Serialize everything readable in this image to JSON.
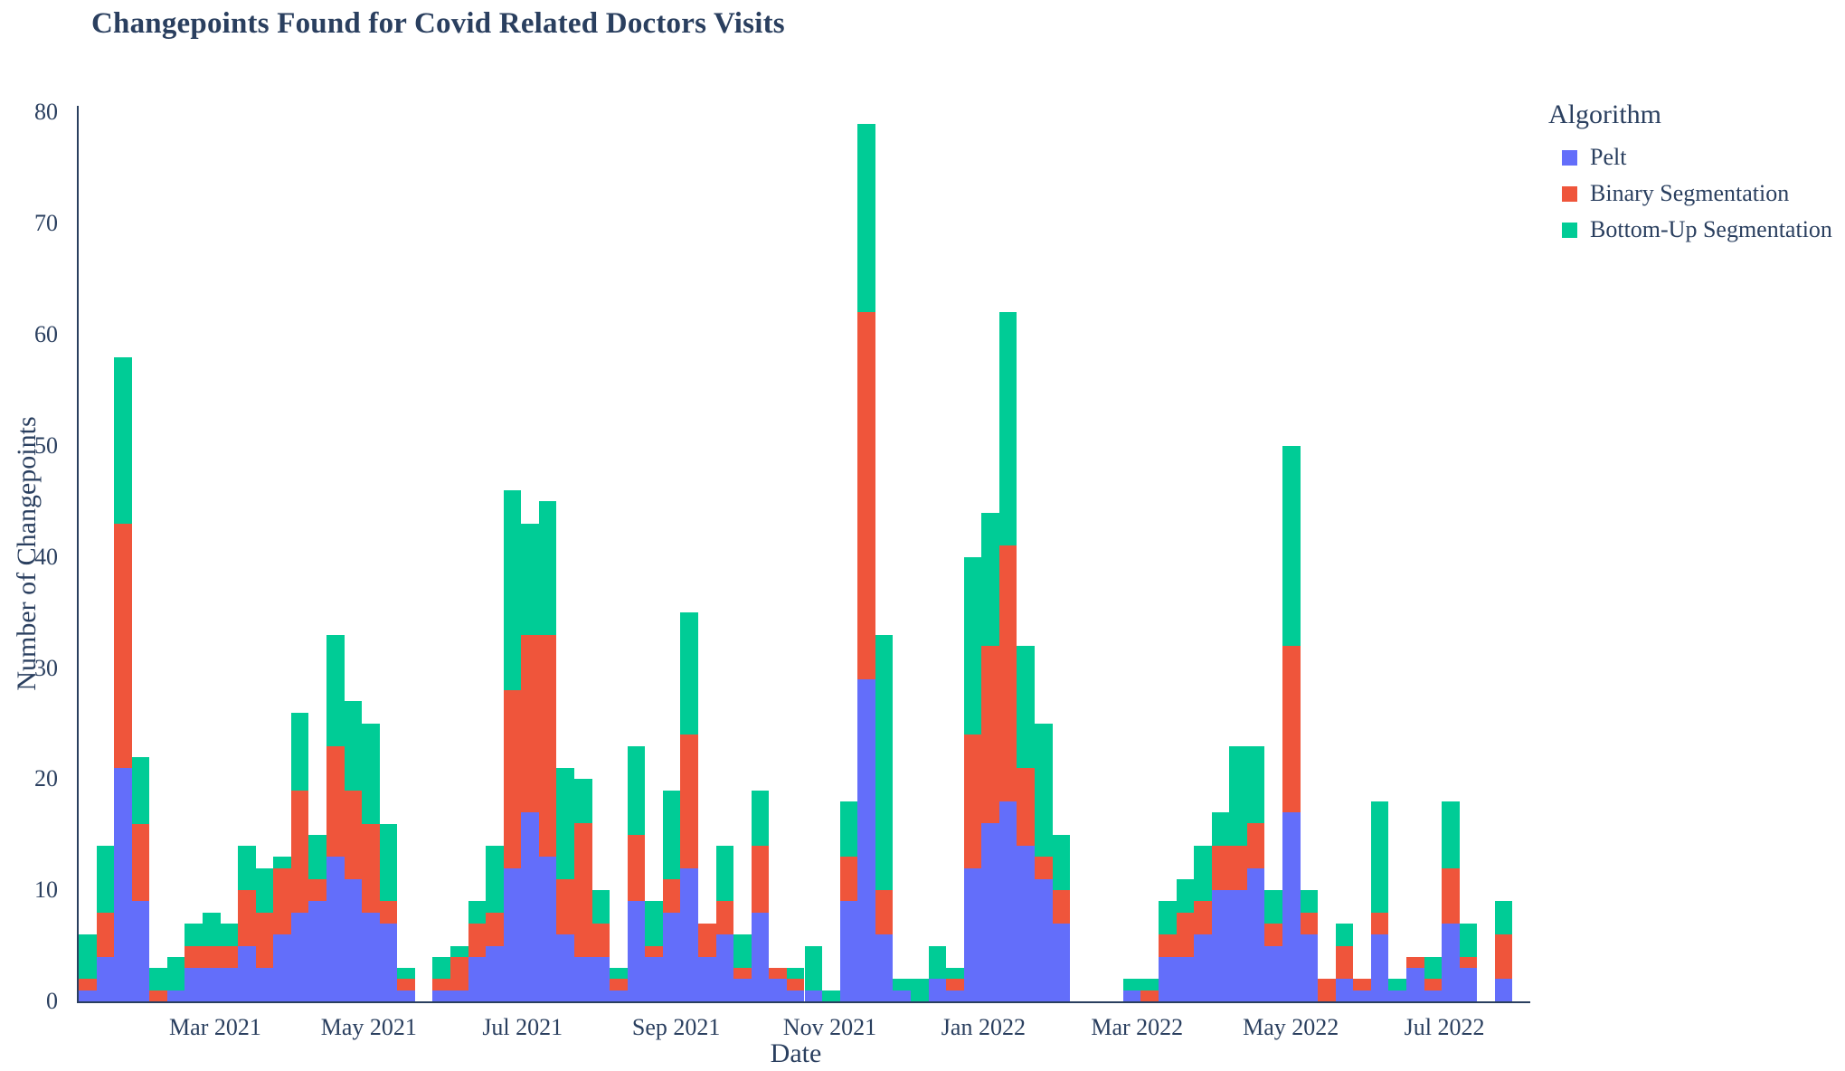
{
  "page": {
    "background": "#ffffff",
    "text_color": "#2a3f5f"
  },
  "chart_data": {
    "type": "bar",
    "stacked": true,
    "title": "Changepoints Found for Covid Related Doctors Visits",
    "xlabel": "Date",
    "ylabel": "Number of Changepoints",
    "ylim": [
      0,
      80.6
    ],
    "yticks": [
      0,
      10,
      20,
      30,
      40,
      50,
      60,
      70,
      80
    ],
    "xtick_labels": [
      "Mar 2021",
      "May 2021",
      "Jul 2021",
      "Sep 2021",
      "Nov 2021",
      "Jan 2022",
      "Mar 2022",
      "May 2022",
      "Jul 2022"
    ],
    "grid": false,
    "legend": {
      "title": "Algorithm",
      "position": "top-right"
    },
    "x_weeks": [
      "2021-01-03",
      "2021-01-10",
      "2021-01-17",
      "2021-01-24",
      "2021-01-31",
      "2021-02-07",
      "2021-02-14",
      "2021-02-21",
      "2021-02-28",
      "2021-03-07",
      "2021-03-14",
      "2021-03-21",
      "2021-03-28",
      "2021-04-04",
      "2021-04-11",
      "2021-04-18",
      "2021-04-25",
      "2021-05-02",
      "2021-05-09",
      "2021-05-16",
      "2021-05-23",
      "2021-05-30",
      "2021-06-06",
      "2021-06-13",
      "2021-06-20",
      "2021-06-27",
      "2021-07-04",
      "2021-07-11",
      "2021-07-18",
      "2021-07-25",
      "2021-08-01",
      "2021-08-08",
      "2021-08-15",
      "2021-08-22",
      "2021-08-29",
      "2021-09-05",
      "2021-09-12",
      "2021-09-19",
      "2021-09-26",
      "2021-10-03",
      "2021-10-10",
      "2021-10-17",
      "2021-10-24",
      "2021-10-31",
      "2021-11-07",
      "2021-11-14",
      "2021-11-21",
      "2021-11-28",
      "2021-12-05",
      "2021-12-12",
      "2021-12-19",
      "2021-12-26",
      "2022-01-02",
      "2022-01-09",
      "2022-01-16",
      "2022-01-23",
      "2022-01-30",
      "2022-02-06",
      "2022-02-13",
      "2022-02-20",
      "2022-02-27",
      "2022-03-06",
      "2022-03-13",
      "2022-03-20",
      "2022-03-27",
      "2022-04-03",
      "2022-04-10",
      "2022-04-17",
      "2022-04-24",
      "2022-05-01",
      "2022-05-08",
      "2022-05-15",
      "2022-05-22",
      "2022-05-29",
      "2022-06-05",
      "2022-06-12",
      "2022-06-19",
      "2022-06-26",
      "2022-07-03",
      "2022-07-10",
      "2022-07-17",
      "2022-07-24"
    ],
    "series": [
      {
        "name": "Pelt",
        "color": "#636EFA",
        "values": [
          1,
          4,
          21,
          9,
          0,
          1,
          3,
          3,
          3,
          5,
          3,
          6,
          8,
          9,
          13,
          11,
          8,
          7,
          1,
          0,
          1,
          1,
          4,
          5,
          12,
          17,
          13,
          6,
          4,
          4,
          1,
          9,
          4,
          8,
          12,
          4,
          6,
          2,
          8,
          2,
          1,
          1,
          0,
          9,
          29,
          6,
          1,
          0,
          2,
          1,
          12,
          16,
          18,
          14,
          11,
          7,
          0,
          0,
          0,
          1,
          0,
          4,
          4,
          6,
          10,
          10,
          12,
          5,
          17,
          6,
          0,
          2,
          1,
          6,
          1,
          3,
          1,
          7,
          3,
          0,
          2,
          0
        ]
      },
      {
        "name": "Binary Segmentation",
        "color": "#EF553B",
        "values": [
          1,
          4,
          22,
          7,
          1,
          0,
          2,
          2,
          2,
          5,
          5,
          6,
          11,
          2,
          10,
          8,
          8,
          2,
          1,
          0,
          1,
          3,
          3,
          3,
          16,
          16,
          20,
          5,
          12,
          3,
          1,
          6,
          1,
          3,
          12,
          3,
          3,
          1,
          6,
          1,
          1,
          0,
          0,
          4,
          33,
          4,
          0,
          0,
          0,
          1,
          12,
          16,
          23,
          7,
          2,
          3,
          0,
          0,
          0,
          0,
          1,
          2,
          4,
          3,
          4,
          4,
          4,
          2,
          15,
          2,
          2,
          3,
          1,
          2,
          0,
          1,
          1,
          5,
          1,
          0,
          4,
          0
        ]
      },
      {
        "name": "Bottom-Up Segmentation",
        "color": "#00CC96",
        "values": [
          4,
          6,
          15,
          6,
          2,
          3,
          2,
          3,
          2,
          4,
          4,
          1,
          7,
          4,
          10,
          8,
          9,
          7,
          1,
          0,
          2,
          1,
          2,
          6,
          18,
          10,
          12,
          10,
          4,
          3,
          1,
          8,
          4,
          8,
          11,
          0,
          5,
          3,
          5,
          0,
          1,
          4,
          1,
          5,
          17,
          23,
          1,
          2,
          3,
          1,
          16,
          12,
          21,
          11,
          12,
          5,
          0,
          0,
          0,
          1,
          1,
          3,
          3,
          5,
          3,
          9,
          7,
          3,
          18,
          2,
          0,
          2,
          0,
          10,
          1,
          0,
          2,
          6,
          3,
          0,
          3,
          0
        ]
      }
    ]
  }
}
